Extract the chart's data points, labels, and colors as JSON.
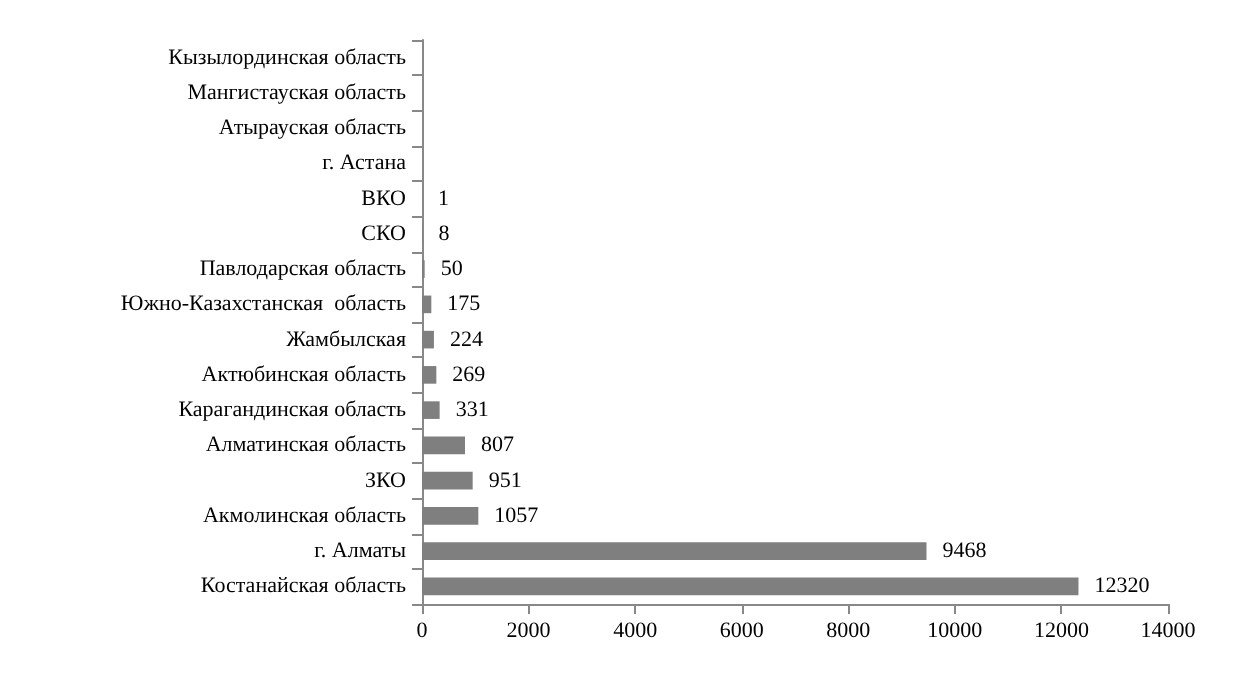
{
  "chart_data": {
    "type": "bar",
    "orientation": "horizontal",
    "categories": [
      "Кызылординская область",
      "Мангистауская область",
      "Атырауская область",
      "г. Астана",
      "ВКО",
      "СКО",
      "Павлодарская область",
      "Южно-Казахстанская  область",
      "Жамбылская",
      "Актюбинская область",
      "Карагандинская область",
      "Алматинская область",
      "ЗКО",
      "Акмолинская область",
      "г. Алматы",
      "Костанайская область"
    ],
    "values": [
      null,
      null,
      null,
      null,
      1,
      8,
      50,
      175,
      224,
      269,
      331,
      807,
      951,
      1057,
      9468,
      12320
    ],
    "color": "#7f7f7f",
    "xlim": [
      0,
      14000
    ],
    "xticks": [
      0,
      2000,
      4000,
      6000,
      8000,
      10000,
      12000,
      14000
    ],
    "data_labels": true
  }
}
